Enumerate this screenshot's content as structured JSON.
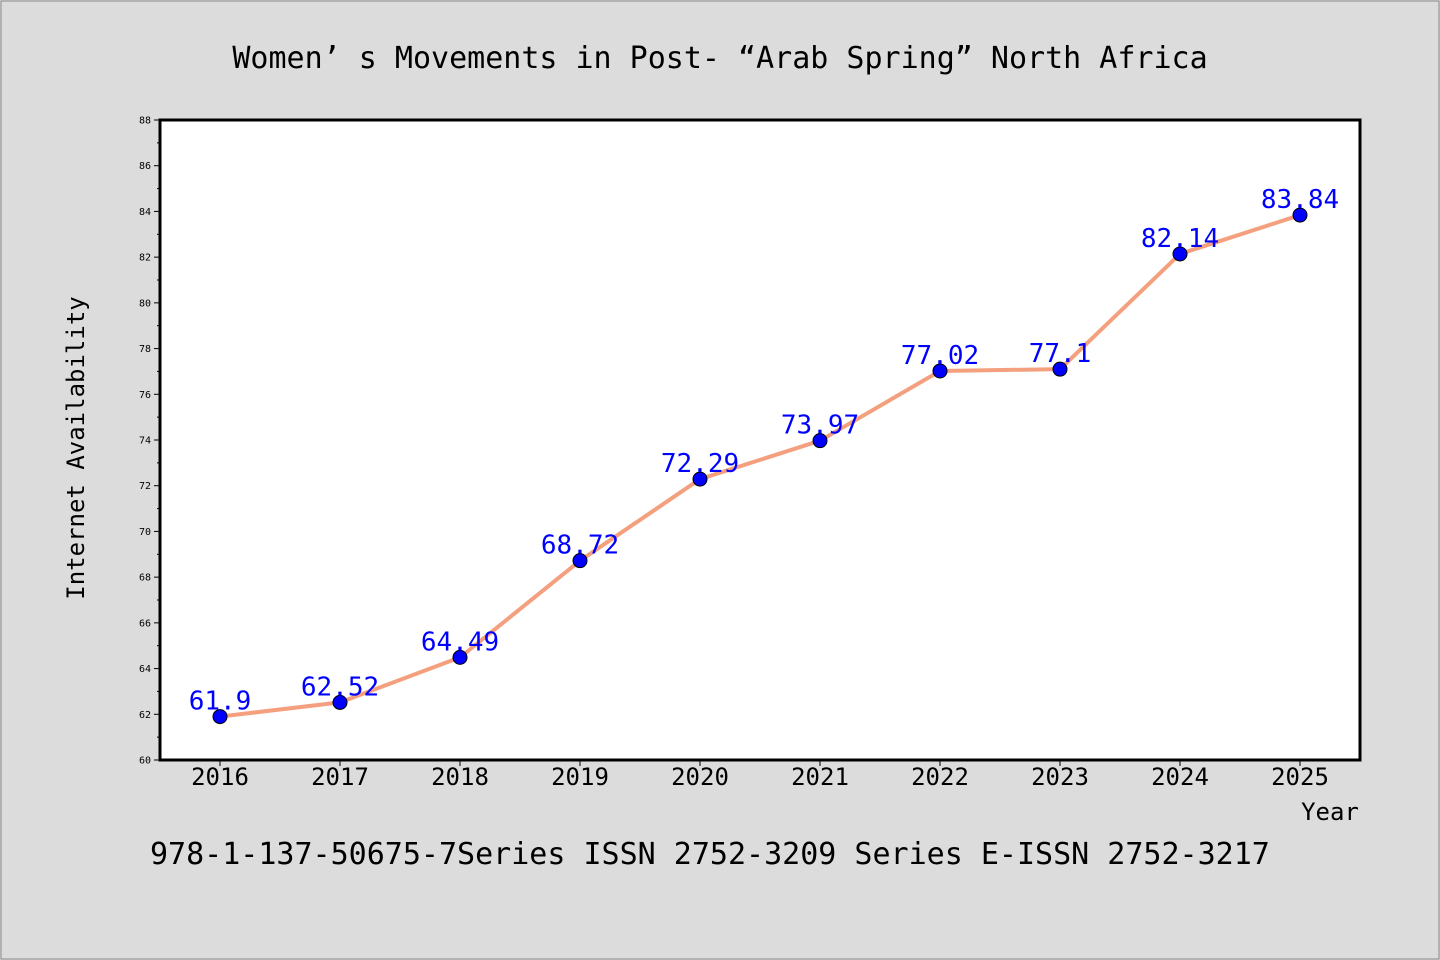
{
  "chart_data": {
    "type": "line",
    "title": "Women’ s Movements in Post- “Arab Spring” North Africa",
    "xlabel": "Year",
    "ylabel": "Internet Availability",
    "categories": [
      "2016",
      "2017",
      "2018",
      "2019",
      "2020",
      "2021",
      "2022",
      "2023",
      "2024",
      "2025"
    ],
    "series": [
      {
        "values": [
          61.9,
          62.52,
          64.49,
          68.72,
          72.29,
          73.97,
          77.02,
          77.1,
          82.14,
          83.84
        ],
        "labels": [
          "61.9",
          "62.52",
          "64.49",
          "68.72",
          "72.29",
          "73.97",
          "77.02",
          "77.1",
          "82.14",
          "83.84"
        ]
      }
    ],
    "ylim": [
      60,
      88
    ],
    "yticks": [
      "60",
      "62",
      "64",
      "66",
      "68",
      "70",
      "72",
      "74",
      "76",
      "78",
      "80",
      "82",
      "84",
      "86",
      "88"
    ],
    "grid": false,
    "line_color": "#f4a07e",
    "marker_color": "#0000ff",
    "label_color": "#0000ff",
    "footer": "978-1-137-50675-7Series ISSN 2752-3209 Series E-ISSN 2752-3217"
  }
}
